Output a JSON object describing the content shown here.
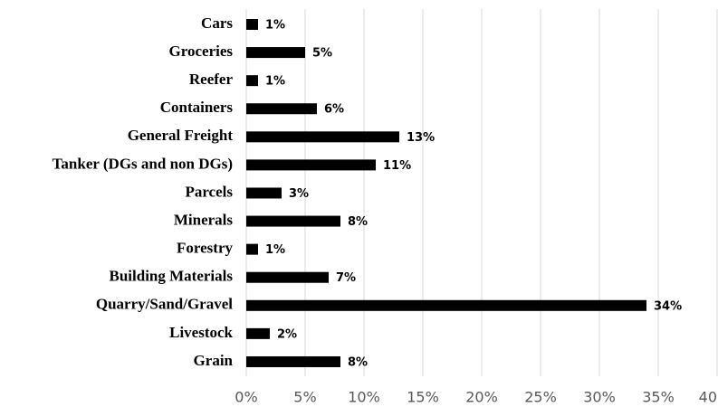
{
  "chart_data": {
    "type": "barh",
    "categories": [
      "Cars",
      "Groceries",
      "Reefer",
      "Containers",
      "General Freight",
      "Tanker (DGs and non DGs)",
      "Parcels",
      "Minerals",
      "Forestry",
      "Building Materials",
      "Quarry/Sand/Gravel",
      "Livestock",
      "Grain"
    ],
    "values": [
      1,
      5,
      1,
      6,
      13,
      11,
      3,
      8,
      1,
      7,
      34,
      2,
      8
    ],
    "value_labels": [
      "1%",
      "5%",
      "1%",
      "6%",
      "13%",
      "11%",
      "3%",
      "8%",
      "1%",
      "7%",
      "34%",
      "2%",
      "8%"
    ],
    "color": "#000000",
    "xlim": [
      0,
      40
    ],
    "xticks": [
      {
        "value": 0,
        "label": "0%"
      },
      {
        "value": 5,
        "label": "5%"
      },
      {
        "value": 10,
        "label": "10%"
      },
      {
        "value": 15,
        "label": "15%"
      },
      {
        "value": 20,
        "label": "20%"
      },
      {
        "value": 25,
        "label": "25%"
      },
      {
        "value": 30,
        "label": "30%"
      },
      {
        "value": 35,
        "label": "35%"
      },
      40
    ],
    "grid": true
  }
}
